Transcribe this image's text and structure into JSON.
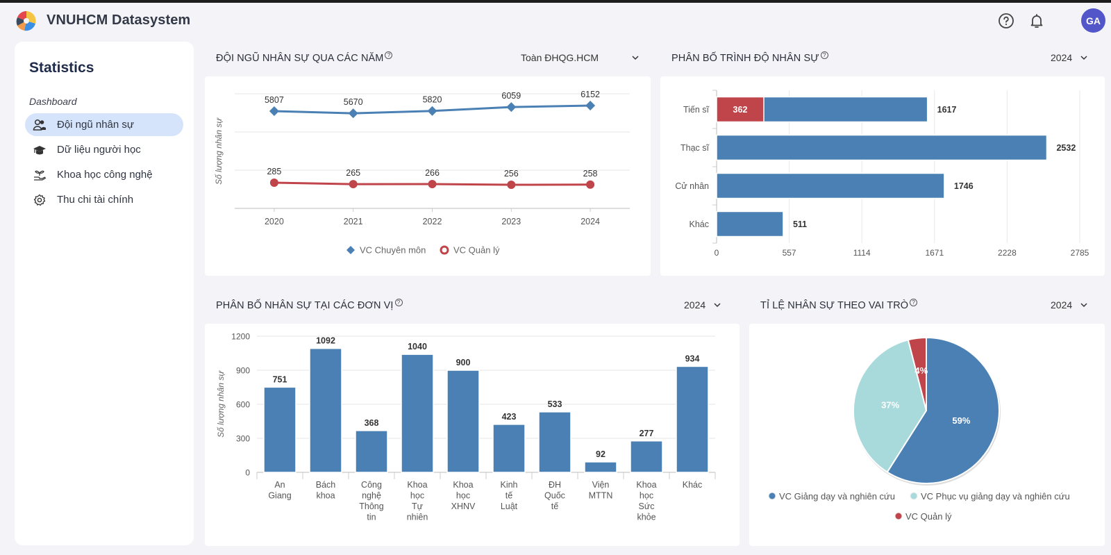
{
  "app": {
    "title": "VNUHCM Datasystem",
    "avatar_initials": "GA",
    "colors": {
      "avatar": "#5356c9",
      "active_nav": "#d6e4fb",
      "series_blue": "#4a80b3",
      "series_red": "#c0454a",
      "series_teal": "#a9dadb"
    }
  },
  "header_icons": [
    {
      "name": "help-icon"
    },
    {
      "name": "bell-icon"
    }
  ],
  "sidebar": {
    "title": "Statistics",
    "section": "Dashboard",
    "items": [
      {
        "label": "Đội ngũ nhân sự",
        "icon": "users-icon",
        "active": true
      },
      {
        "label": "Dữ liệu người học",
        "icon": "graduation-cap-icon",
        "active": false
      },
      {
        "label": "Khoa học công nghệ",
        "icon": "plant-hand-icon",
        "active": false
      },
      {
        "label": "Thu chi tài chính",
        "icon": "gear-icon",
        "active": false
      }
    ]
  },
  "cards": {
    "staff_over_years": {
      "title": "ĐỘI NGŨ NHÂN SỰ QUA CÁC NĂM",
      "filter": "Toàn ĐHQG.HCM"
    },
    "education_level": {
      "title": "PHÂN BỐ TRÌNH ĐỘ NHÂN SỰ",
      "filter": "2024"
    },
    "by_unit": {
      "title": "PHÂN BỐ NHÂN SỰ TẠI CÁC ĐƠN VỊ",
      "filter": "2024"
    },
    "by_role": {
      "title": "TỈ LỆ NHÂN SỰ THEO VAI TRÒ",
      "filter": "2024"
    }
  },
  "chart_data": [
    {
      "type": "line",
      "title": "ĐỘI NGŨ NHÂN SỰ QUA CÁC NĂM",
      "ylabel": "Số lượng nhân sự",
      "xlabel": "",
      "x": [
        "2020",
        "2021",
        "2022",
        "2023",
        "2024"
      ],
      "series": [
        {
          "name": "VC Chuyên môn",
          "values": [
            5807,
            5670,
            5820,
            6059,
            6152
          ],
          "color": "#4a80b3",
          "marker": "diamond"
        },
        {
          "name": "VC Quản lý",
          "values": [
            285,
            265,
            266,
            256,
            258
          ],
          "color": "#c0454a",
          "marker": "circle"
        }
      ],
      "grid": true,
      "legend": "bottom"
    },
    {
      "type": "bar",
      "orientation": "horizontal",
      "title": "PHÂN BỐ TRÌNH ĐỘ NHÂN SỰ",
      "categories": [
        "Tiến sĩ",
        "Thạc sĩ",
        "Cử nhân",
        "Khác"
      ],
      "values": [
        1617,
        2532,
        1746,
        511
      ],
      "highlight": {
        "category": "Tiến sĩ",
        "value": 362,
        "color": "#c0454a"
      },
      "xticks": [
        "0",
        "557",
        "1114",
        "1671",
        "2228",
        "2785"
      ],
      "xlim": [
        0,
        2785
      ],
      "grid": true
    },
    {
      "type": "bar",
      "title": "PHÂN BỐ NHÂN SỰ TẠI CÁC ĐƠN VỊ",
      "ylabel": "Số lượng nhân sự",
      "categories": [
        [
          "An",
          "Giang"
        ],
        [
          "Bách",
          "khoa"
        ],
        [
          "Công",
          "nghệ",
          "Thông",
          "tin"
        ],
        [
          "Khoa",
          "học",
          "Tự",
          "nhiên"
        ],
        [
          "Khoa",
          "học",
          "XHNV"
        ],
        [
          "Kinh",
          "tế",
          "Luật"
        ],
        [
          "ĐH",
          "Quốc",
          "tế"
        ],
        [
          "Viện",
          "MTTN"
        ],
        [
          "Khoa",
          "học",
          "Sức",
          "khỏe"
        ],
        [
          "Khác"
        ]
      ],
      "values": [
        751,
        1092,
        368,
        1040,
        900,
        423,
        533,
        92,
        277,
        934
      ],
      "yticks": [
        "0",
        "300",
        "600",
        "900",
        "1200"
      ],
      "ylim": [
        0,
        1200
      ],
      "grid": true
    },
    {
      "type": "pie",
      "title": "TỈ LỆ NHÂN SỰ THEO VAI TRÒ",
      "slices": [
        {
          "name": "VC Giảng dạy và nghiên cứu",
          "value": 59,
          "label": "59%",
          "color": "#4a80b3"
        },
        {
          "name": "VC Phục vụ giảng dạy và nghiên cứu",
          "value": 37,
          "label": "37%",
          "color": "#a9dadb"
        },
        {
          "name": "VC Quản lý",
          "value": 4,
          "label": "4%",
          "color": "#c0454a"
        }
      ],
      "legend": "bottom"
    }
  ]
}
